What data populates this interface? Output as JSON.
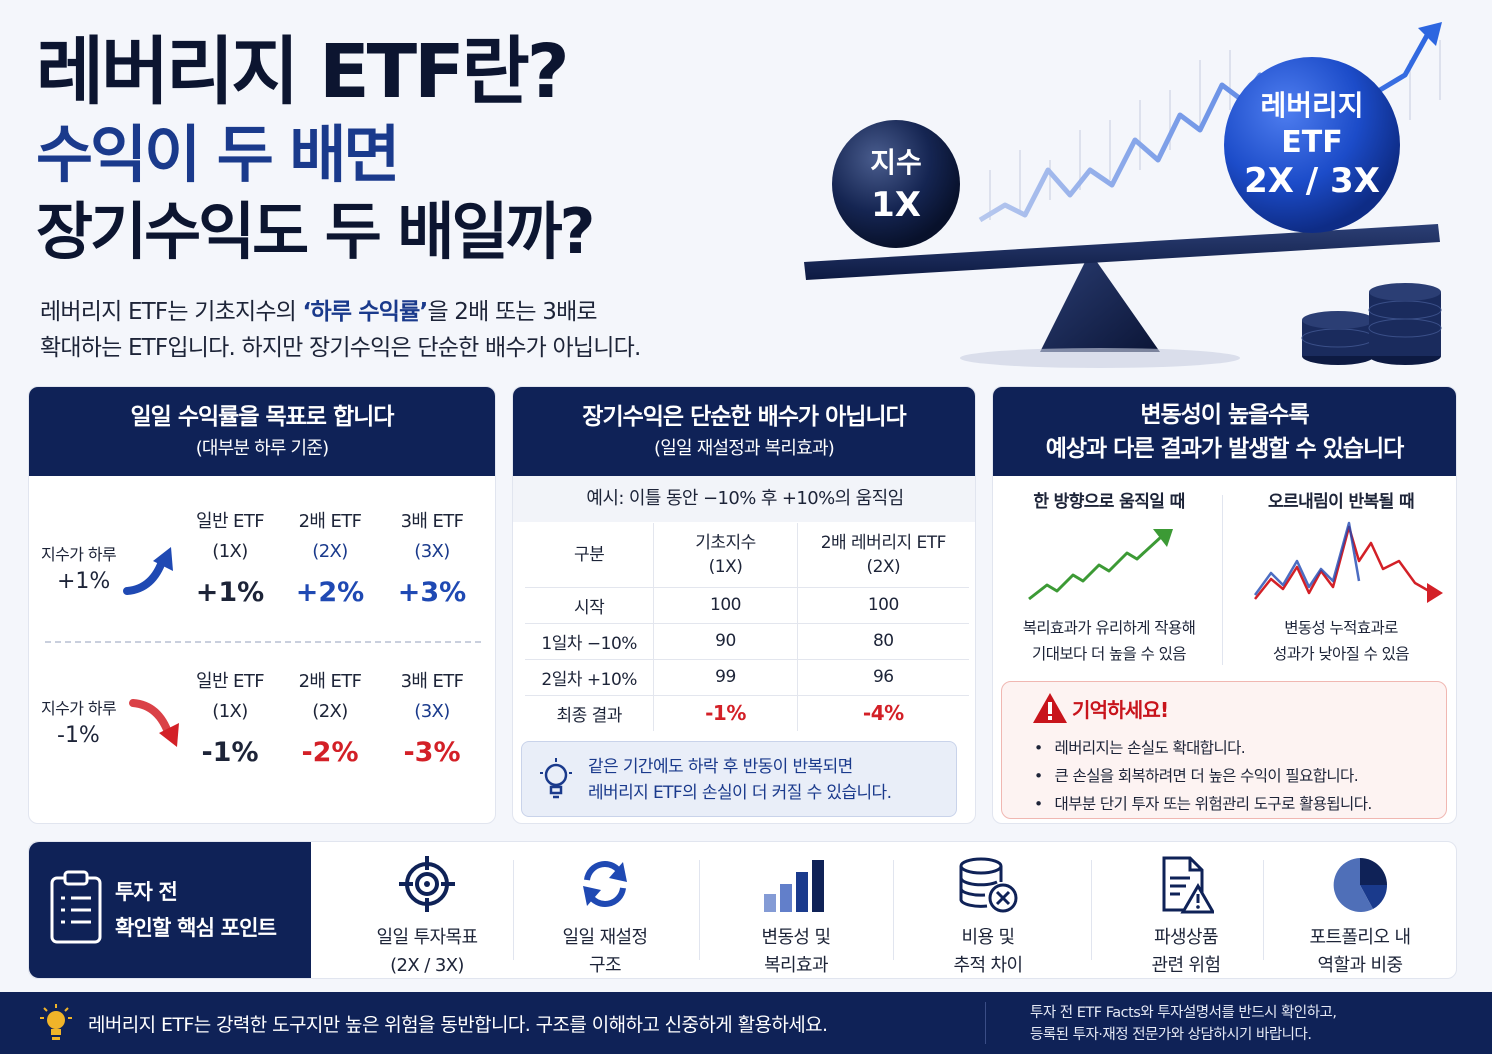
{
  "hero": {
    "title_line1": "레버리지 ETF란?",
    "title_line2": "수익이 두 배면",
    "title_line3": "장기수익도 두 배일까?",
    "desc_pre": "레버리지 ETF는 기초지수의 ",
    "desc_highlight": "‘하루 수익률’",
    "desc_post": "을 2배 또는 3배로",
    "desc_line2": "확대하는 ETF입니다. 하지만 장기수익은 단순한 배수가 아닙니다.",
    "ball_small_line1": "지수",
    "ball_small_line2": "1X",
    "ball_big_line1": "레버리지",
    "ball_big_line2": "ETF",
    "ball_big_line3": "2X / 3X"
  },
  "panel1": {
    "title": "일일 수익률을 목표로 합니다",
    "subtitle": "(대부분 하루 기준)",
    "up": {
      "label": "지수가 하루",
      "value": "+1%",
      "columns": [
        {
          "name1": "일반 ETF",
          "name2": "(1X)",
          "result": "+1%"
        },
        {
          "name1": "2배 ETF",
          "name2": "(2X)",
          "result": "+2%"
        },
        {
          "name1": "3배 ETF",
          "name2": "(3X)",
          "result": "+3%"
        }
      ]
    },
    "down": {
      "label": "지수가 하루",
      "value": "-1%",
      "columns": [
        {
          "name1": "일반 ETF",
          "name2": "(1X)",
          "result": "-1%"
        },
        {
          "name1": "2배 ETF",
          "name2": "(2X)",
          "result": "-2%"
        },
        {
          "name1": "3배 ETF",
          "name2": "(3X)",
          "result": "-3%"
        }
      ]
    }
  },
  "panel2": {
    "title": "장기수익은 단순한 배수가 아닙니다",
    "subtitle": "(일일 재설정과 복리효과)",
    "caption": "예시: 이틀 동안 −10% 후 +10%의 움직임",
    "headers": [
      "구분",
      "기초지수",
      "(1X)",
      "2배 레버리지 ETF",
      "(2X)"
    ],
    "rows": [
      [
        "시작",
        "100",
        "100"
      ],
      [
        "1일차 −10%",
        "90",
        "80"
      ],
      [
        "2일차 +10%",
        "99",
        "96"
      ],
      [
        "최종 결과",
        "-1%",
        "-4%"
      ]
    ],
    "note_line1": "같은 기간에도 하락 후 반동이 반복되면",
    "note_line2": "레버리지 ETF의 손실이 더 커질 수 있습니다."
  },
  "panel3": {
    "title_line1": "변동성이 높을수록",
    "title_line2": "예상과 다른 결과가 발생할 수 있습니다",
    "left_head": "한 방향으로 움직일 때",
    "left_desc1": "복리효과가 유리하게 작용해",
    "left_desc2": "기대보다 더 높을 수 있음",
    "right_head": "오르내림이 반복될 때",
    "right_desc1": "변동성 누적효과로",
    "right_desc2": "성과가 낮아질 수 있음",
    "warn_title": "기억하세요!",
    "warn_items": [
      "레버리지는 손실도 확대합니다.",
      "큰 손실을 회복하려면 더 높은 수익이 필요합니다.",
      "대부분 단기 투자 또는 위험관리 도구로 활용됩니다."
    ]
  },
  "checklist": {
    "title_line1": "투자 전",
    "title_line2": "확인할 핵심 포인트",
    "items": [
      {
        "icon": "target-icon",
        "line1": "일일 투자목표",
        "line2": "(2X / 3X)"
      },
      {
        "icon": "refresh-icon",
        "line1": "일일 재설정",
        "line2": "구조"
      },
      {
        "icon": "bar-chart-icon",
        "line1": "변동성 및",
        "line2": "복리효과"
      },
      {
        "icon": "cost-icon",
        "line1": "비용 및",
        "line2": "추적 차이"
      },
      {
        "icon": "document-warning-icon",
        "line1": "파생상품",
        "line2": "관련 위험"
      },
      {
        "icon": "pie-chart-icon",
        "line1": "포트폴리오 내",
        "line2": "역할과 비중"
      }
    ]
  },
  "footer": {
    "main": "레버리지 ETF는 강력한 도구지만 높은 위험을 동반합니다. 구조를 이해하고 신중하게 활용하세요.",
    "note_line1": "투자 전 ETF Facts와 투자설명서를 반드시 확인하고,",
    "note_line2": "등록된 투자·재정 전문가와 상담하시기 바랍니다."
  },
  "colors": {
    "navy": "#0f2257",
    "blue": "#1a3a8c",
    "bright_blue": "#1f49b3",
    "red": "#d32027",
    "green": "#3c9a35"
  }
}
